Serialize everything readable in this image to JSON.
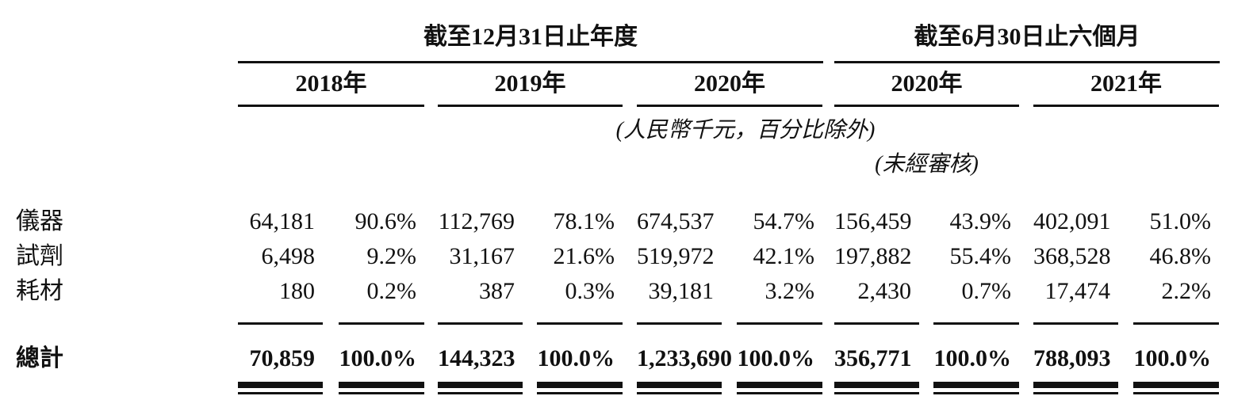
{
  "table": {
    "group_headers": {
      "fiscal_year": "截至12月31日止年度",
      "six_months": "截至6月30日止六個月"
    },
    "years": [
      "2018年",
      "2019年",
      "2020年",
      "2020年",
      "2021年"
    ],
    "notes": {
      "currency": "(人民幣千元，百分比除外)",
      "unaudited": "(未經審核)"
    },
    "rows": [
      {
        "label": "儀器",
        "values": [
          "64,181",
          "90.6%",
          "112,769",
          "78.1%",
          "674,537",
          "54.7%",
          "156,459",
          "43.9%",
          "402,091",
          "51.0%"
        ]
      },
      {
        "label": "試劑",
        "values": [
          "6,498",
          "9.2%",
          "31,167",
          "21.6%",
          "519,972",
          "42.1%",
          "197,882",
          "55.4%",
          "368,528",
          "46.8%"
        ]
      },
      {
        "label": "耗材",
        "values": [
          "180",
          "0.2%",
          "387",
          "0.3%",
          "39,181",
          "3.2%",
          "2,430",
          "0.7%",
          "17,474",
          "2.2%"
        ]
      }
    ],
    "total": {
      "label": "總計",
      "values": [
        "70,859",
        "100.0%",
        "144,323",
        "100.0%",
        "1,233,690",
        "100.0%",
        "356,771",
        "100.0%",
        "788,093",
        "100.0%"
      ]
    }
  },
  "colors": {
    "text": "#111111",
    "rule": "#111111",
    "background": "#ffffff"
  }
}
